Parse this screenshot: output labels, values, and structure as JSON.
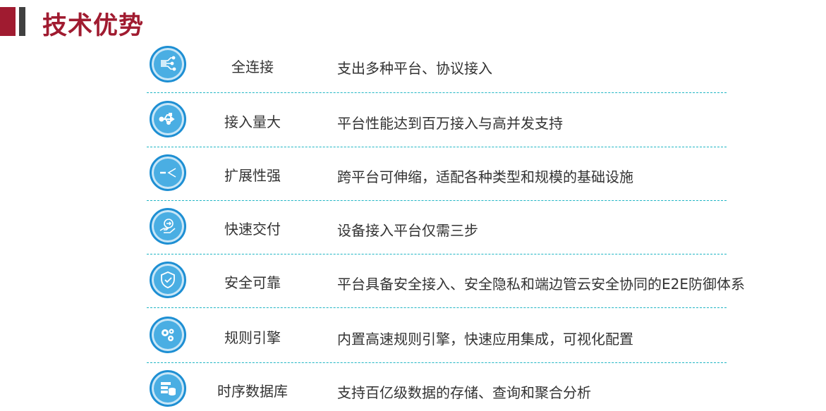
{
  "header": {
    "title": "技术优势",
    "accent_color": "#a01b30"
  },
  "items": [
    {
      "name": "全连接",
      "desc": "支出多种平台、协议接入",
      "icon": "circuit-icon"
    },
    {
      "name": "接入量大",
      "desc": "平台性能达到百万接入与高并发支持",
      "icon": "usb-icon"
    },
    {
      "name": "扩展性强",
      "desc": "跨平台可伸缩，适配各种类型和规模的基础设施",
      "icon": "expand-icon"
    },
    {
      "name": "快速交付",
      "desc": "设备接入平台仅需三步",
      "icon": "hand-delivery-icon"
    },
    {
      "name": "安全可靠",
      "desc": "平台具备安全接入、安全隐私和端边管云安全协同的E2E防御体系",
      "icon": "shield-check-icon"
    },
    {
      "name": "规则引擎",
      "desc": "内置高速规则引擎，快速应用集成，可视化配置",
      "icon": "gears-icon"
    },
    {
      "name": "时序数据库",
      "desc": "支持百亿级数据的存储、查询和聚合分析",
      "icon": "database-icon"
    }
  ]
}
